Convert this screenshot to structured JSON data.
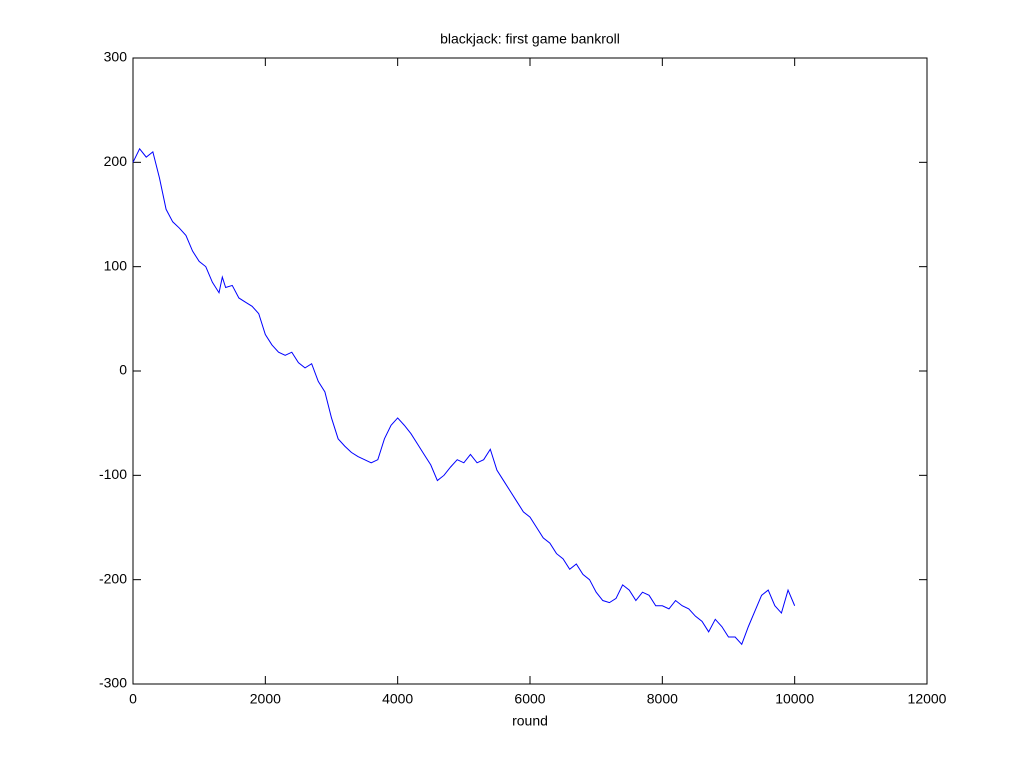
{
  "chart_data": {
    "type": "line",
    "title": "blackjack: first game bankroll",
    "x_label": "round",
    "color": "#0000ff",
    "x": [
      0,
      100,
      200,
      300,
      400,
      500,
      600,
      700,
      800,
      900,
      1000,
      1100,
      1200,
      1300,
      1350,
      1400,
      1500,
      1600,
      1700,
      1800,
      1900,
      2000,
      2100,
      2200,
      2300,
      2400,
      2500,
      2600,
      2700,
      2800,
      2900,
      3000,
      3100,
      3200,
      3300,
      3400,
      3500,
      3600,
      3700,
      3800,
      3900,
      4000,
      4100,
      4200,
      4300,
      4400,
      4500,
      4600,
      4700,
      4800,
      4900,
      5000,
      5100,
      5200,
      5300,
      5400,
      5500,
      5600,
      5700,
      5800,
      5900,
      6000,
      6100,
      6200,
      6300,
      6400,
      6500,
      6600,
      6700,
      6800,
      6900,
      7000,
      7100,
      7200,
      7300,
      7400,
      7500,
      7600,
      7700,
      7800,
      7900,
      8000,
      8100,
      8200,
      8300,
      8400,
      8500,
      8600,
      8700,
      8800,
      8900,
      9000,
      9100,
      9200,
      9300,
      9400,
      9500,
      9600,
      9700,
      9800,
      9900,
      10000
    ],
    "values": [
      200,
      213,
      205,
      210,
      185,
      155,
      143,
      137,
      130,
      115,
      105,
      100,
      85,
      75,
      90,
      80,
      82,
      70,
      66,
      62,
      55,
      35,
      25,
      18,
      15,
      18,
      8,
      3,
      7,
      -10,
      -20,
      -45,
      -65,
      -72,
      -78,
      -82,
      -85,
      -88,
      -85,
      -65,
      -52,
      -45,
      -52,
      -60,
      -70,
      -80,
      -90,
      -105,
      -100,
      -92,
      -85,
      -88,
      -80,
      -88,
      -85,
      -75,
      -95,
      -105,
      -115,
      -125,
      -135,
      -140,
      -150,
      -160,
      -165,
      -175,
      -180,
      -190,
      -185,
      -195,
      -200,
      -212,
      -220,
      -222,
      -218,
      -205,
      -210,
      -220,
      -212,
      -215,
      -225,
      -225,
      -228,
      -220,
      -225,
      -228,
      -235,
      -240,
      -250,
      -238,
      -245,
      -255,
      -255,
      -262,
      -245,
      -230,
      -215,
      -210,
      -225,
      -232,
      -210,
      -225
    ],
    "xlim": [
      0,
      12000
    ],
    "xticks": [
      0,
      2000,
      4000,
      6000,
      8000,
      10000,
      12000
    ],
    "ylim": [
      -300,
      300
    ],
    "yticks": [
      -300,
      -200,
      -100,
      0,
      100,
      200,
      300
    ]
  }
}
